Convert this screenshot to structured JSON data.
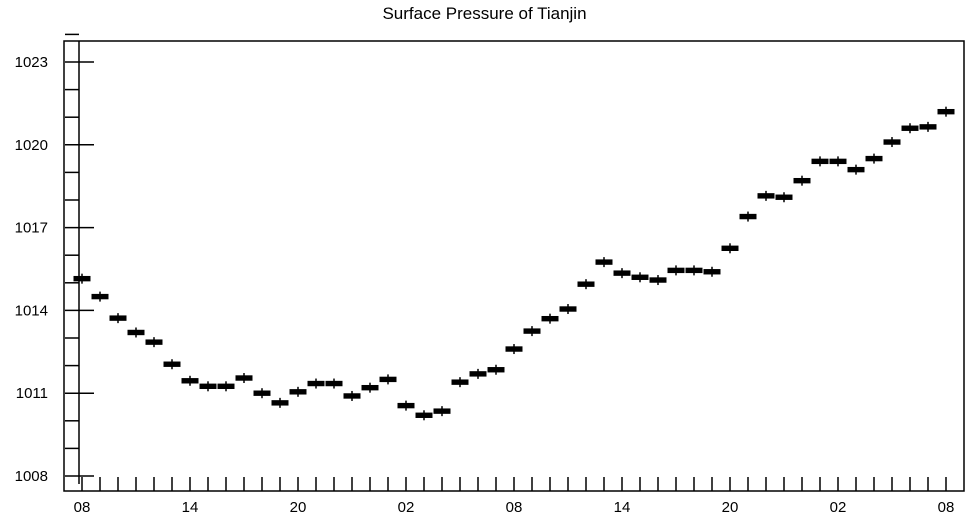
{
  "chart_data": {
    "type": "box",
    "title": "Surface Pressure of Tianjin",
    "xlabel": "",
    "ylabel": "",
    "ylim": [
      1008,
      1024
    ],
    "y_ticks": [
      1008,
      1011,
      1014,
      1017,
      1020,
      1023
    ],
    "x_tick_labels": [
      "08",
      "14",
      "20",
      "02",
      "08",
      "14",
      "20",
      "02",
      "08"
    ],
    "x_count": 49,
    "x_label_every": 6,
    "grid": false,
    "values": [
      1015.15,
      1014.5,
      1013.72,
      1013.2,
      1012.85,
      1012.05,
      1011.45,
      1011.25,
      1011.25,
      1011.55,
      1011.0,
      1010.65,
      1011.05,
      1011.35,
      1011.35,
      1010.9,
      1011.2,
      1011.5,
      1010.55,
      1010.2,
      1010.35,
      1011.4,
      1011.7,
      1011.85,
      1012.6,
      1013.25,
      1013.7,
      1014.05,
      1014.95,
      1015.75,
      1015.35,
      1015.2,
      1015.1,
      1015.45,
      1015.45,
      1015.4,
      1016.25,
      1017.4,
      1018.15,
      1018.1,
      1018.7,
      1019.4,
      1019.4,
      1019.1,
      1019.5,
      1020.1,
      1020.6,
      1020.65,
      1021.2
    ]
  }
}
